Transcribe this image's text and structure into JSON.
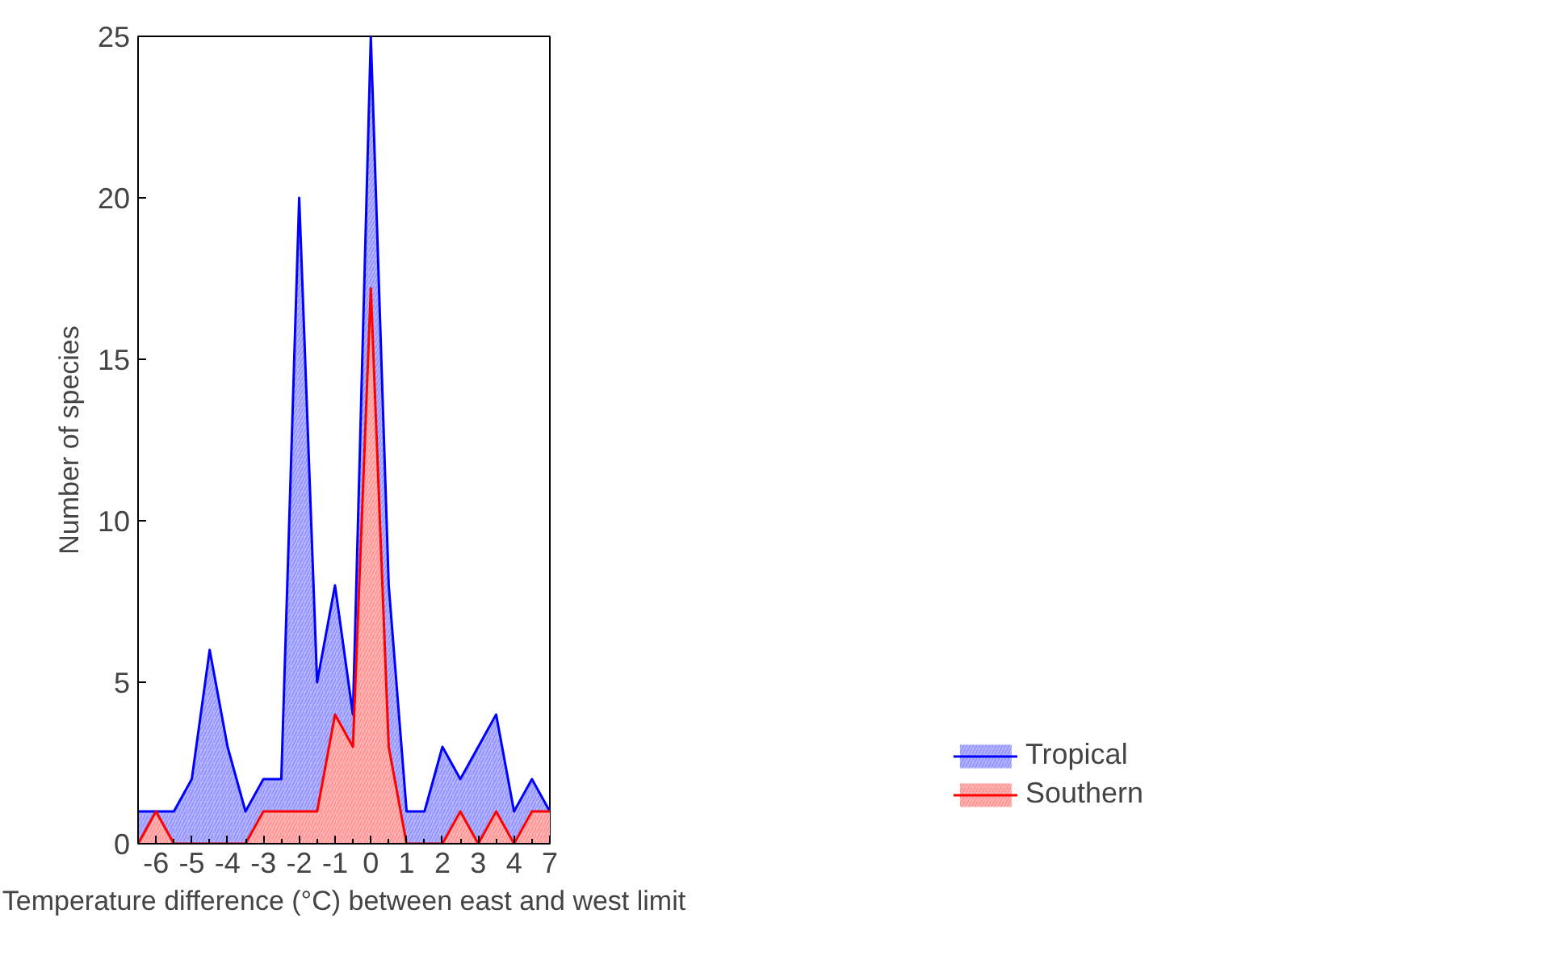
{
  "chart_data": {
    "type": "area",
    "xlabel": "Temperature difference (°C) between east and west limit",
    "ylabel": "Number of species",
    "categories": [
      null,
      "-6",
      null,
      "-5",
      null,
      "-4",
      null,
      "-3",
      null,
      "-2",
      null,
      "-1",
      null,
      "0",
      null,
      "1",
      null,
      "2",
      null,
      "3",
      null,
      "4",
      null,
      "7"
    ],
    "series": [
      {
        "name": "Tropical",
        "color": "#0000ff",
        "values": [
          1,
          1,
          1,
          2,
          6,
          3,
          1,
          2,
          2,
          20,
          5,
          8,
          4,
          25,
          8,
          1,
          1,
          3,
          2,
          3,
          4,
          1,
          2,
          1
        ]
      },
      {
        "name": "Southern",
        "color": "#ff0000",
        "values": [
          0,
          1,
          0,
          0,
          0,
          0,
          0,
          1,
          1,
          1,
          1,
          4,
          3,
          17.2,
          3,
          0,
          0,
          0,
          1,
          0,
          1,
          0,
          1,
          1
        ]
      }
    ],
    "ylim": [
      0,
      25
    ],
    "yticks": [
      0,
      5,
      10,
      15,
      20,
      25
    ],
    "grid": false,
    "legend": "bottom right"
  }
}
